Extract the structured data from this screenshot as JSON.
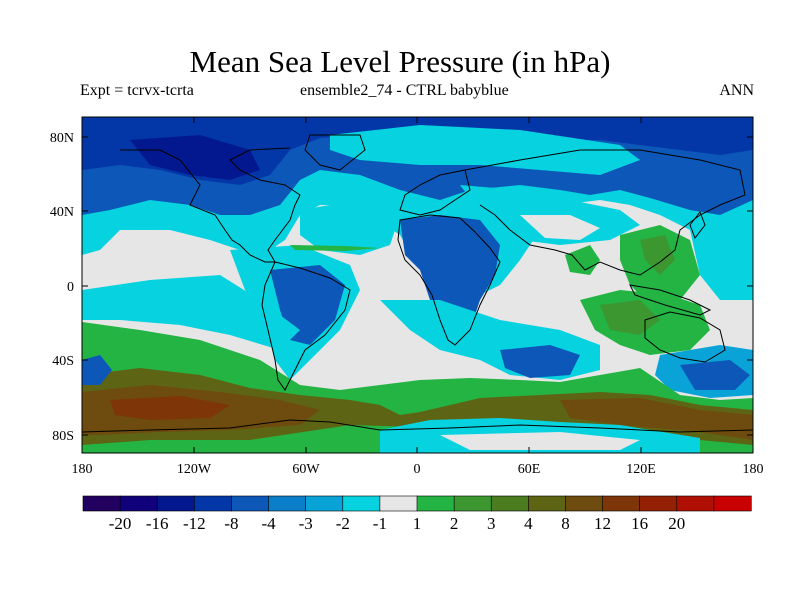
{
  "title": "Mean Sea Level Pressure (in hPa)",
  "subtitle_left": "Expt = tcrvx-tcrta",
  "subtitle_center": "ensemble2_74 - CTRL babyblue",
  "subtitle_right": "ANN",
  "lat_labels": [
    "80N",
    "40N",
    "0",
    "40S",
    "80S"
  ],
  "lon_labels": [
    "180",
    "120W",
    "60W",
    "0",
    "60E",
    "120E",
    "180"
  ],
  "colorbar": {
    "colors": [
      "#210060",
      "#100079",
      "#03188e",
      "#0337a8",
      "#0d57b8",
      "#0b7ec9",
      "#0aa3d8",
      "#06d3df",
      "#e6e6e6",
      "#23b443",
      "#3c9731",
      "#4b7c1f",
      "#5d6514",
      "#6e4b0e",
      "#7e3508",
      "#952105",
      "#b01003",
      "#c80000"
    ],
    "labels": [
      "-20",
      "-16",
      "-12",
      "-8",
      "-4",
      "-3",
      "-2",
      "-1",
      "1",
      "2",
      "3",
      "4",
      "8",
      "12",
      "16",
      "20"
    ]
  },
  "field_colors": {
    "neutral": "#e6e6e6",
    "cyan": "#06d3df",
    "light_blue": "#0aa3d8",
    "blue": "#0d57b8",
    "deep_blue": "#0337a8",
    "navy": "#03188e",
    "green": "#23b443",
    "dark_green": "#3c9731",
    "olive": "#5d6514",
    "brown": "#6e4b0e",
    "dark_brown": "#7e3508"
  }
}
